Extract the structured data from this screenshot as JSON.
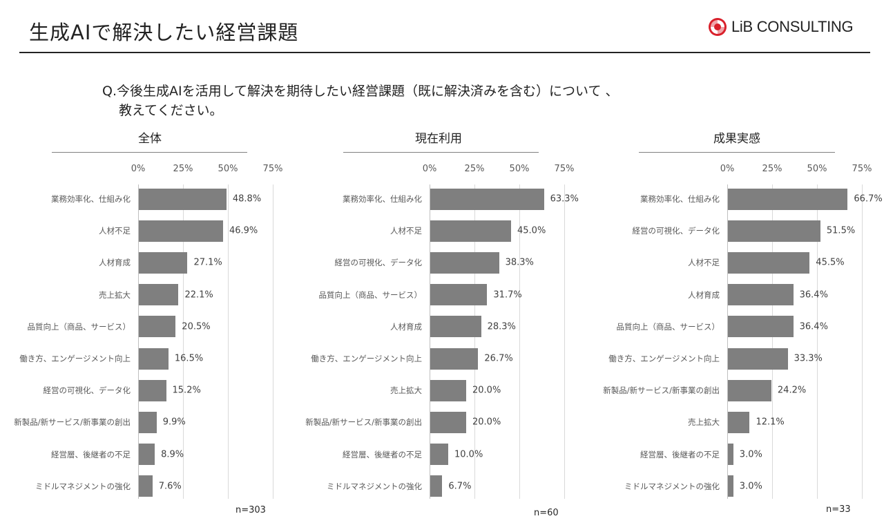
{
  "header": {
    "title": "生成AIで解決したい経営課題",
    "logo_text": "LiB CONSULTING"
  },
  "question": {
    "line1": "Q.今後生成AIを活用して解決を期待したい経営課題（既に解決済みを含む）について 、",
    "line2": "教えてください。"
  },
  "colors": {
    "bar": "#7f7f7f",
    "logo_red": "#d9202b"
  },
  "chart_data": [
    {
      "type": "bar",
      "orientation": "horizontal",
      "title": "全体",
      "n_label": "n=303",
      "xlim": [
        0,
        75
      ],
      "ticks": [
        "0%",
        "25%",
        "50%",
        "75%"
      ],
      "tick_values": [
        0,
        25,
        50,
        75
      ],
      "categories": [
        "業務効率化、仕組み化",
        "人材不足",
        "人材育成",
        "売上拡大",
        "品質向上（商品、サービス）",
        "働き方、エンゲージメント向上",
        "経営の可視化、データ化",
        "新製品/新サービス/新事業の創出",
        "経営層、後継者の不足",
        "ミドルマネジメントの強化"
      ],
      "values": [
        48.8,
        46.9,
        27.1,
        22.1,
        20.5,
        16.5,
        15.2,
        9.9,
        8.9,
        7.6
      ],
      "labels": [
        "48.8%",
        "46.9%",
        "27.1%",
        "22.1%",
        "20.5%",
        "16.5%",
        "15.2%",
        "9.9%",
        "8.9%",
        "7.6%"
      ]
    },
    {
      "type": "bar",
      "orientation": "horizontal",
      "title": "現在利用",
      "n_label": "n=60",
      "xlim": [
        0,
        75
      ],
      "ticks": [
        "0%",
        "25%",
        "50%",
        "75%"
      ],
      "tick_values": [
        0,
        25,
        50,
        75
      ],
      "categories": [
        "業務効率化、仕組み化",
        "人材不足",
        "経営の可視化、データ化",
        "品質向上（商品、サービス）",
        "人材育成",
        "働き方、エンゲージメント向上",
        "売上拡大",
        "新製品/新サービス/新事業の創出",
        "経営層、後継者の不足",
        "ミドルマネジメントの強化"
      ],
      "values": [
        63.3,
        45.0,
        38.3,
        31.7,
        28.3,
        26.7,
        20.0,
        20.0,
        10.0,
        6.7
      ],
      "labels": [
        "63.3%",
        "45.0%",
        "38.3%",
        "31.7%",
        "28.3%",
        "26.7%",
        "20.0%",
        "20.0%",
        "10.0%",
        "6.7%"
      ]
    },
    {
      "type": "bar",
      "orientation": "horizontal",
      "title": "成果実感",
      "n_label": "n=33",
      "xlim": [
        0,
        75
      ],
      "ticks": [
        "0%",
        "25%",
        "50%",
        "75%"
      ],
      "tick_values": [
        0,
        25,
        50,
        75
      ],
      "categories": [
        "業務効率化、仕組み化",
        "経営の可視化、データ化",
        "人材不足",
        "人材育成",
        "品質向上（商品、サービス）",
        "働き方、エンゲージメント向上",
        "新製品/新サービス/新事業の創出",
        "売上拡大",
        "経営層、後継者の不足",
        "ミドルマネジメントの強化"
      ],
      "values": [
        66.7,
        51.5,
        45.5,
        36.4,
        36.4,
        33.3,
        24.2,
        12.1,
        3.0,
        3.0
      ],
      "labels": [
        "66.7%",
        "51.5%",
        "45.5%",
        "36.4%",
        "36.4%",
        "33.3%",
        "24.2%",
        "12.1%",
        "3.0%",
        "3.0%"
      ]
    }
  ]
}
